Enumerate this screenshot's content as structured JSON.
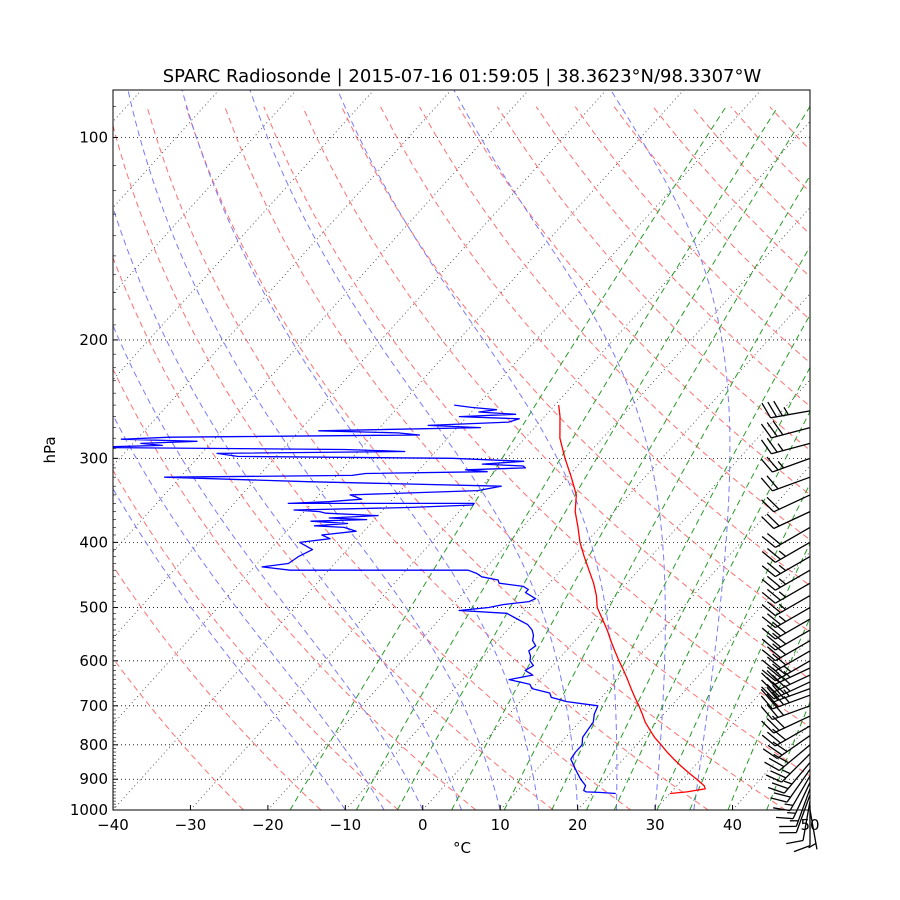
{
  "chart_data": {
    "type": "line",
    "subtype": "skew-T log-P diagram",
    "title": "SPARC Radiosonde | 2015-07-16 01:59:05 | 38.3623°N/98.3307°W",
    "xlabel": "°C",
    "ylabel": "hPa",
    "xlim": [
      -40,
      50
    ],
    "ylim": [
      1000,
      85
    ],
    "y_scale": "log",
    "x_ticks": [
      "−40",
      "−30",
      "−20",
      "−10",
      "0",
      "10",
      "20",
      "30",
      "40",
      "50"
    ],
    "y_ticks": [
      "100",
      "200",
      "300",
      "400",
      "500",
      "600",
      "700",
      "800",
      "900",
      "1000"
    ],
    "grid": "horizontal dotted at labelled pressures",
    "colors": {
      "temperature": "#ff0000",
      "dewpoint": "#0000ff",
      "dry_adiabats": "#ff7070",
      "moist_adiabats": "#7a7aff",
      "mixing_ratio": "#2a9a2a",
      "isotherms": "#333333",
      "wind_barbs": "#000000"
    },
    "series": [
      {
        "key": "temperature",
        "pressure": [
          945,
          940,
          930,
          920,
          900,
          880,
          860,
          840,
          820,
          800,
          780,
          760,
          740,
          720,
          700,
          680,
          660,
          640,
          620,
          600,
          580,
          560,
          540,
          520,
          500,
          480,
          460,
          440,
          420,
          400,
          380,
          360,
          340,
          320,
          300,
          280,
          260,
          250
        ],
        "temp_c": [
          30.0,
          32.0,
          34.0,
          33.5,
          31.8,
          30.0,
          28.2,
          26.5,
          24.8,
          23.2,
          21.5,
          20.0,
          18.5,
          17.2,
          15.8,
          14.3,
          12.8,
          11.3,
          9.7,
          8.0,
          6.3,
          4.6,
          2.9,
          1.0,
          -1.0,
          -2.5,
          -4.3,
          -6.4,
          -8.6,
          -10.8,
          -12.8,
          -15.0,
          -16.8,
          -19.5,
          -22.5,
          -25.5,
          -28.0,
          -29.5
        ]
      },
      {
        "key": "dewpoint",
        "pressure": [
          945,
          942,
          940,
          935,
          920,
          900,
          880,
          860,
          840,
          820,
          800,
          780,
          760,
          740,
          720,
          700,
          690,
          680,
          670,
          660,
          650,
          640,
          630,
          620,
          610,
          600,
          590,
          580,
          570,
          560,
          550,
          540,
          530,
          520,
          510,
          505,
          500,
          495,
          490,
          485,
          480,
          475,
          470,
          465,
          460,
          455,
          450,
          445,
          440,
          440,
          435,
          430,
          420,
          410,
          400,
          395,
          390,
          385,
          380,
          378,
          375,
          372,
          370,
          368,
          365,
          362,
          360,
          358,
          355,
          352,
          350,
          350,
          348,
          345,
          340,
          335,
          330,
          325,
          320,
          318,
          316,
          314,
          312,
          310,
          308,
          306,
          303,
          300,
          298,
          295,
          293,
          291,
          289,
          287,
          285,
          283,
          281,
          279,
          277,
          275,
          273,
          270,
          268,
          265,
          262,
          260,
          258,
          256,
          254,
          252,
          250
        ],
        "temp_c": [
          23.0,
          21.0,
          19.0,
          18.5,
          18.2,
          16.8,
          15.6,
          14.4,
          13.2,
          13.0,
          13.0,
          12.2,
          12.0,
          11.8,
          11.0,
          10.5,
          6.0,
          3.5,
          2.8,
          0.0,
          -0.8,
          -4.0,
          -1.5,
          -3.0,
          -2.5,
          -3.5,
          -4.0,
          -4.8,
          -4.5,
          -5.5,
          -6.0,
          -6.8,
          -8.0,
          -10.0,
          -12.0,
          -18.5,
          -15.0,
          -13.5,
          -10.5,
          -10.0,
          -11.0,
          -12.0,
          -12.0,
          -13.0,
          -16.5,
          -17.0,
          -19.5,
          -20.5,
          -22.0,
          -45.0,
          -49.0,
          -46.0,
          -45.5,
          -44.5,
          -47.0,
          -43.5,
          -45.0,
          -41.0,
          -43.0,
          -47.0,
          -43.0,
          -48.0,
          -41.0,
          -46.0,
          -40.0,
          -47.0,
          -48.0,
          -51.5,
          -37.0,
          -29.0,
          -29.0,
          -53.0,
          -48.0,
          -44.0,
          -46.0,
          -30.0,
          -27.5,
          -53.0,
          -72.0,
          -48.0,
          -46.5,
          -31.0,
          -34.0,
          -26.5,
          -27.0,
          -32.5,
          -27.5,
          -37.0,
          -65.0,
          -68.0,
          -44.0,
          -52.0,
          -86.0,
          -76.0,
          -79.0,
          -72.0,
          -82.0,
          -76.0,
          -44.0,
          -47.0,
          -57.5,
          -37.0,
          -44.0,
          -34.0,
          -33.0,
          -41.0,
          -34.0,
          -39.0,
          -37.0,
          -40.5,
          -43.0
        ]
      }
    ],
    "wind_barbs": {
      "pressure": [
        1000,
        985,
        970,
        950,
        930,
        910,
        890,
        870,
        850,
        825,
        800,
        775,
        750,
        725,
        700,
        675,
        660,
        645,
        630,
        615,
        600,
        580,
        560,
        540,
        520,
        500,
        480,
        460,
        440,
        420,
        400,
        380,
        360,
        340,
        320,
        300,
        285,
        270,
        255
      ],
      "speed_kt": [
        5,
        10,
        10,
        10,
        15,
        15,
        15,
        20,
        25,
        25,
        30,
        30,
        30,
        30,
        30,
        35,
        35,
        35,
        35,
        35,
        35,
        30,
        30,
        30,
        30,
        25,
        25,
        25,
        25,
        25,
        25,
        20,
        20,
        20,
        20,
        25,
        25,
        30,
        35
      ],
      "direction_deg": [
        170,
        180,
        190,
        200,
        200,
        205,
        210,
        215,
        220,
        225,
        230,
        235,
        240,
        245,
        250,
        250,
        250,
        245,
        245,
        245,
        240,
        240,
        240,
        240,
        240,
        240,
        240,
        240,
        240,
        240,
        240,
        240,
        245,
        245,
        250,
        250,
        255,
        255,
        260
      ]
    }
  }
}
